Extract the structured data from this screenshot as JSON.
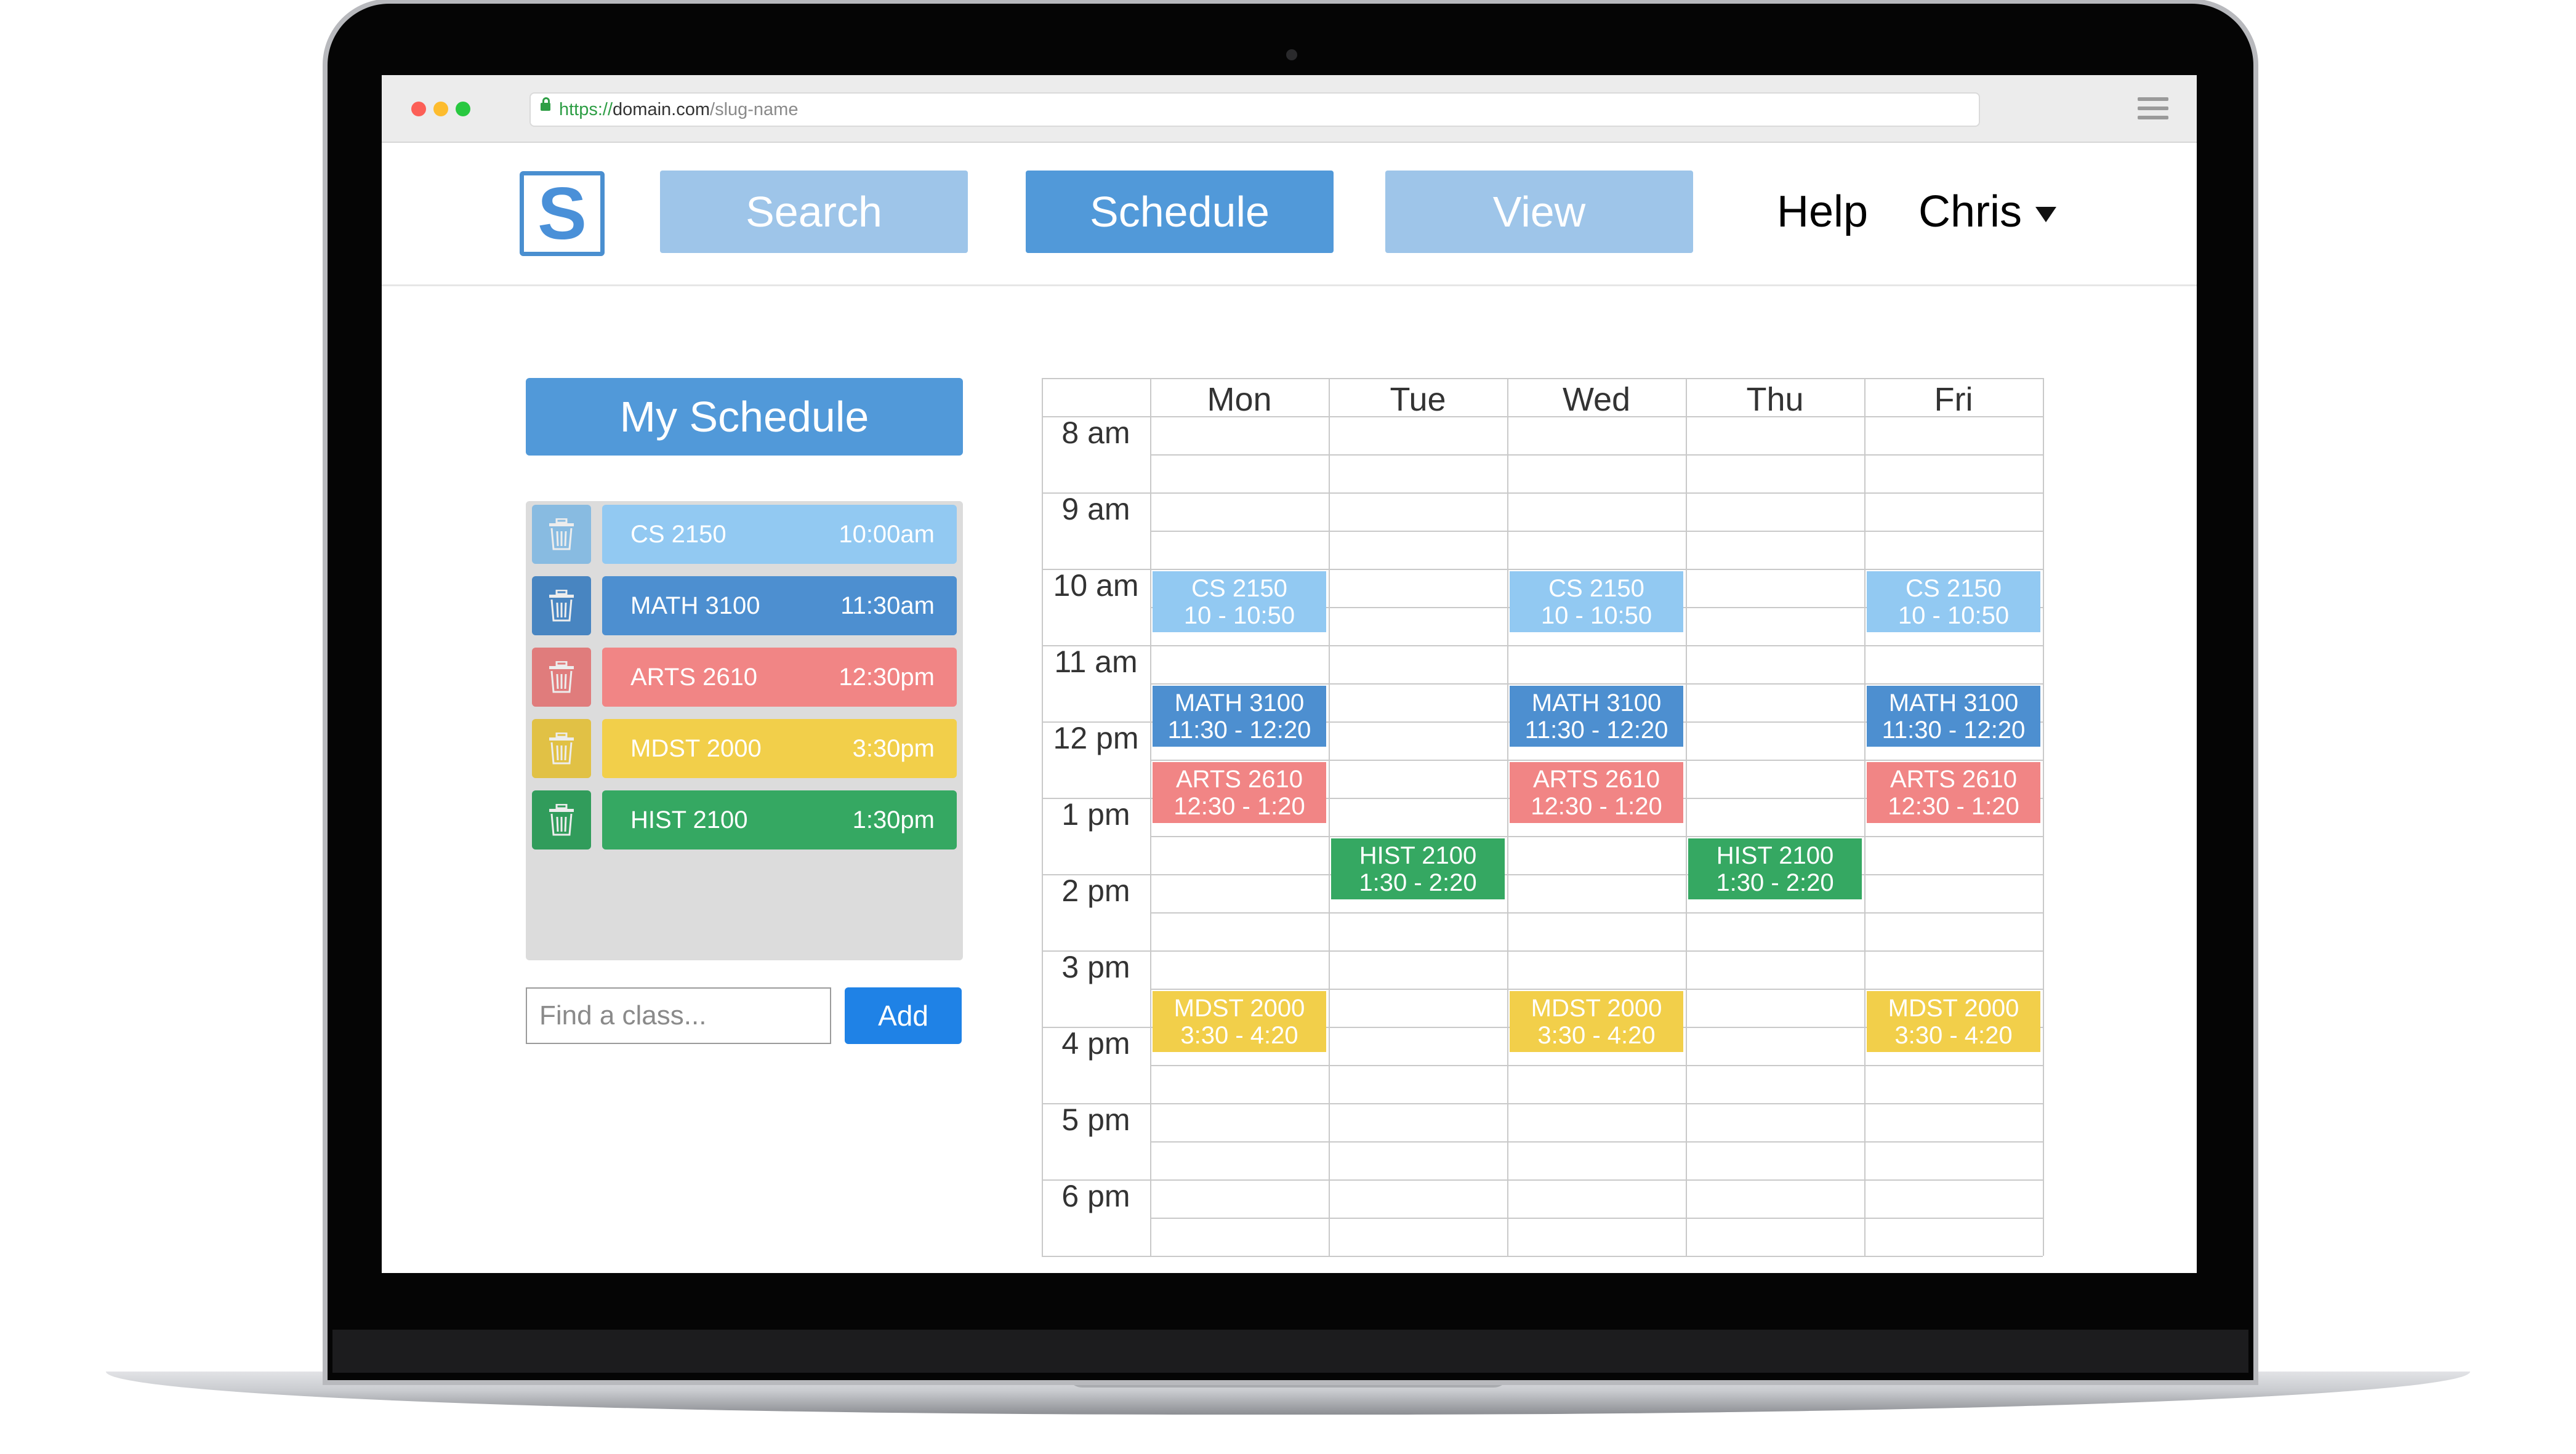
{
  "browser": {
    "url_protocol": "https://",
    "url_domain": "domain.com",
    "url_path": "/slug-name"
  },
  "header": {
    "logo_letter": "S",
    "nav": [
      "Search",
      "Schedule",
      "View"
    ],
    "active_tab": "Schedule",
    "help": "Help",
    "user": "Chris"
  },
  "sidebar": {
    "title": "My Schedule",
    "classes": [
      {
        "name": "CS 2150",
        "time": "10:00am",
        "color": "#92c9f2",
        "trash_color": "#92c9f2"
      },
      {
        "name": "MATH 3100",
        "time": "11:30am",
        "color": "#4d8fd0",
        "trash_color": "#4d8fd0"
      },
      {
        "name": "ARTS 2610",
        "time": "12:30pm",
        "color": "#f18585",
        "trash_color": "#f18585"
      },
      {
        "name": "MDST 2000",
        "time": "3:30pm",
        "color": "#f2cf4a",
        "trash_color": "#f2cf4a"
      },
      {
        "name": "HIST 2100",
        "time": "1:30pm",
        "color": "#35a862",
        "trash_color": "#35a862"
      }
    ],
    "search_placeholder": "Find a class...",
    "add_label": "Add",
    "trash_icon": "trash-icon"
  },
  "calendar": {
    "days": [
      "Mon",
      "Tue",
      "Wed",
      "Thu",
      "Fri"
    ],
    "hours": [
      "8 am",
      "9 am",
      "10 am",
      "11 am",
      "12 pm",
      "1 pm",
      "2 pm",
      "3 pm",
      "4 pm",
      "5 pm",
      "6 pm"
    ],
    "events": [
      {
        "course": "CS 2150",
        "time": "10 - 10:50",
        "day": 0,
        "start": 10.0,
        "end": 10.83,
        "color": "#92c9f2"
      },
      {
        "course": "CS 2150",
        "time": "10 - 10:50",
        "day": 2,
        "start": 10.0,
        "end": 10.83,
        "color": "#92c9f2"
      },
      {
        "course": "CS 2150",
        "time": "10 - 10:50",
        "day": 4,
        "start": 10.0,
        "end": 10.83,
        "color": "#92c9f2"
      },
      {
        "course": "MATH 3100",
        "time": "11:30 - 12:20",
        "day": 0,
        "start": 11.5,
        "end": 12.33,
        "color": "#4d8fd0"
      },
      {
        "course": "MATH 3100",
        "time": "11:30 - 12:20",
        "day": 2,
        "start": 11.5,
        "end": 12.33,
        "color": "#4d8fd0"
      },
      {
        "course": "MATH 3100",
        "time": "11:30 - 12:20",
        "day": 4,
        "start": 11.5,
        "end": 12.33,
        "color": "#4d8fd0"
      },
      {
        "course": "ARTS 2610",
        "time": "12:30 - 1:20",
        "day": 0,
        "start": 12.5,
        "end": 13.33,
        "color": "#f18585"
      },
      {
        "course": "ARTS 2610",
        "time": "12:30 - 1:20",
        "day": 2,
        "start": 12.5,
        "end": 13.33,
        "color": "#f18585"
      },
      {
        "course": "ARTS 2610",
        "time": "12:30 - 1:20",
        "day": 4,
        "start": 12.5,
        "end": 13.33,
        "color": "#f18585"
      },
      {
        "course": "HIST 2100",
        "time": "1:30 - 2:20",
        "day": 1,
        "start": 13.5,
        "end": 14.33,
        "color": "#35a862"
      },
      {
        "course": "HIST 2100",
        "time": "1:30 - 2:20",
        "day": 3,
        "start": 13.5,
        "end": 14.33,
        "color": "#35a862"
      },
      {
        "course": "MDST 2000",
        "time": "3:30 - 4:20",
        "day": 0,
        "start": 15.5,
        "end": 16.33,
        "color": "#f2cf4a"
      },
      {
        "course": "MDST 2000",
        "time": "3:30 - 4:20",
        "day": 2,
        "start": 15.5,
        "end": 16.33,
        "color": "#f2cf4a"
      },
      {
        "course": "MDST 2000",
        "time": "3:30 - 4:20",
        "day": 4,
        "start": 15.5,
        "end": 16.33,
        "color": "#f2cf4a"
      }
    ]
  }
}
